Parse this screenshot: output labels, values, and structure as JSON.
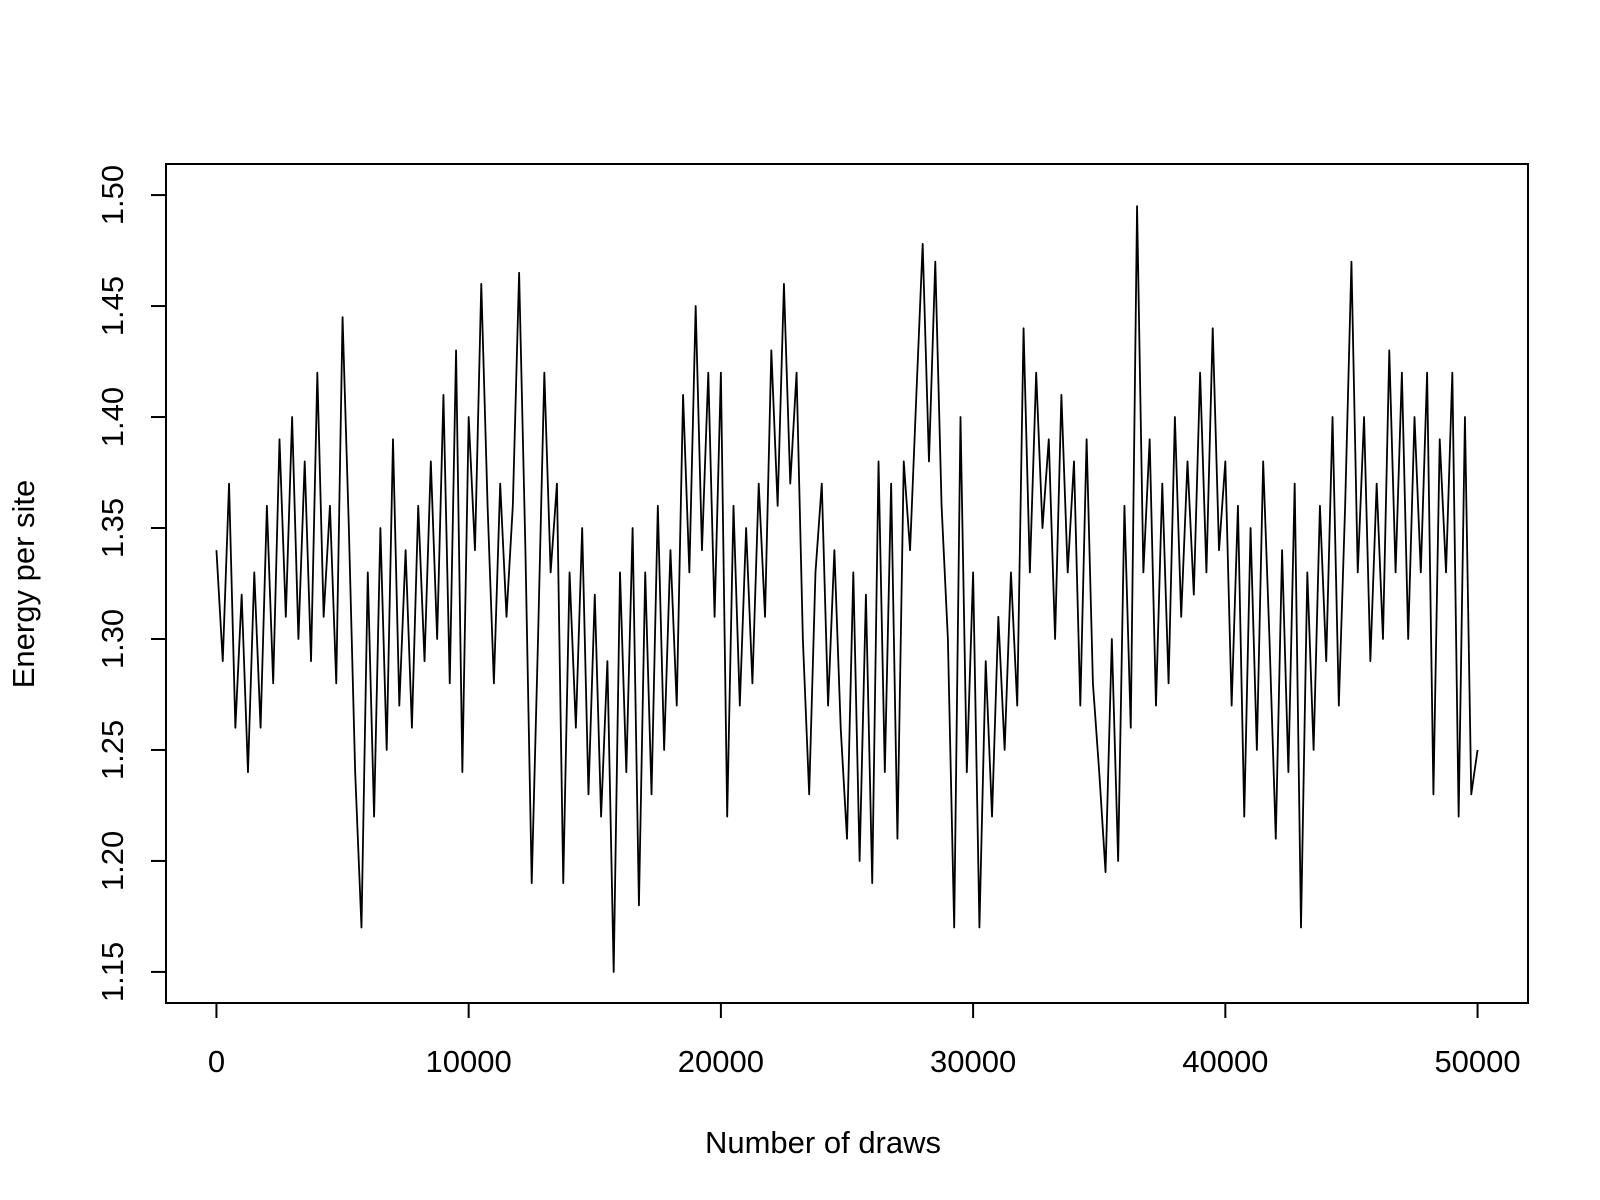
{
  "chart_data": {
    "type": "line",
    "x_label": "Number of draws",
    "y_label": "Energy per site",
    "color": "#000000",
    "xlim": [
      -2000,
      52000
    ],
    "ylim": [
      1.136,
      1.514
    ],
    "xticks": [
      0,
      10000,
      20000,
      30000,
      40000,
      50000
    ],
    "yticks": [
      1.15,
      {
        "value": 1.2,
        "label": "1.20"
      },
      1.25,
      {
        "value": 1.3,
        "label": "1.30"
      },
      1.35,
      {
        "value": 1.4,
        "label": "1.40"
      },
      1.45,
      {
        "value": 1.5,
        "label": "1.50"
      }
    ],
    "x": [
      0,
      250,
      500,
      750,
      1000,
      1250,
      1500,
      1750,
      2000,
      2250,
      2500,
      2750,
      3000,
      3250,
      3500,
      3750,
      4000,
      4250,
      4500,
      4750,
      5000,
      5250,
      5500,
      5750,
      6000,
      6250,
      6500,
      6750,
      7000,
      7250,
      7500,
      7750,
      8000,
      8250,
      8500,
      8750,
      9000,
      9250,
      9500,
      9750,
      10000,
      10250,
      10500,
      10750,
      11000,
      11250,
      11500,
      11750,
      12000,
      12250,
      12500,
      12750,
      13000,
      13250,
      13500,
      13750,
      14000,
      14250,
      14500,
      14750,
      15000,
      15250,
      15500,
      15750,
      16000,
      16250,
      16500,
      16750,
      17000,
      17250,
      17500,
      17750,
      18000,
      18250,
      18500,
      18750,
      19000,
      19250,
      19500,
      19750,
      20000,
      20250,
      20500,
      20750,
      21000,
      21250,
      21500,
      21750,
      22000,
      22250,
      22500,
      22750,
      23000,
      23250,
      23500,
      23750,
      24000,
      24250,
      24500,
      24750,
      25000,
      25250,
      25500,
      25750,
      26000,
      26250,
      26500,
      26750,
      27000,
      27250,
      27500,
      27750,
      28000,
      28250,
      28500,
      28750,
      29000,
      29250,
      29500,
      29750,
      30000,
      30250,
      30500,
      30750,
      31000,
      31250,
      31500,
      31750,
      32000,
      32250,
      32500,
      32750,
      33000,
      33250,
      33500,
      33750,
      34000,
      34250,
      34500,
      34750,
      35000,
      35250,
      35500,
      35750,
      36000,
      36250,
      36500,
      36750,
      37000,
      37250,
      37500,
      37750,
      38000,
      38250,
      38500,
      38750,
      39000,
      39250,
      39500,
      39750,
      40000,
      40250,
      40500,
      40750,
      41000,
      41250,
      41500,
      41750,
      42000,
      42250,
      42500,
      42750,
      43000,
      43250,
      43500,
      43750,
      44000,
      44250,
      44500,
      44750,
      45000,
      45250,
      45500,
      45750,
      46000,
      46250,
      46500,
      46750,
      47000,
      47250,
      47500,
      47750,
      48000,
      48250,
      48500,
      48750,
      49000,
      49250,
      49500,
      49750,
      50000
    ],
    "values": [
      1.34,
      1.29,
      1.37,
      1.26,
      1.32,
      1.24,
      1.33,
      1.26,
      1.36,
      1.28,
      1.39,
      1.31,
      1.4,
      1.3,
      1.38,
      1.29,
      1.42,
      1.31,
      1.36,
      1.28,
      1.445,
      1.35,
      1.24,
      1.17,
      1.33,
      1.22,
      1.35,
      1.25,
      1.39,
      1.27,
      1.34,
      1.26,
      1.36,
      1.29,
      1.38,
      1.3,
      1.41,
      1.28,
      1.43,
      1.24,
      1.4,
      1.34,
      1.46,
      1.36,
      1.28,
      1.37,
      1.31,
      1.36,
      1.465,
      1.34,
      1.19,
      1.3,
      1.42,
      1.33,
      1.37,
      1.19,
      1.33,
      1.26,
      1.35,
      1.23,
      1.32,
      1.22,
      1.29,
      1.15,
      1.33,
      1.24,
      1.35,
      1.18,
      1.33,
      1.23,
      1.36,
      1.25,
      1.34,
      1.27,
      1.41,
      1.33,
      1.45,
      1.34,
      1.42,
      1.31,
      1.42,
      1.22,
      1.36,
      1.27,
      1.35,
      1.28,
      1.37,
      1.31,
      1.43,
      1.36,
      1.46,
      1.37,
      1.42,
      1.3,
      1.23,
      1.33,
      1.37,
      1.27,
      1.34,
      1.26,
      1.21,
      1.33,
      1.2,
      1.32,
      1.19,
      1.38,
      1.24,
      1.37,
      1.21,
      1.38,
      1.34,
      1.41,
      1.478,
      1.38,
      1.47,
      1.36,
      1.3,
      1.17,
      1.4,
      1.24,
      1.33,
      1.17,
      1.29,
      1.22,
      1.31,
      1.25,
      1.33,
      1.27,
      1.44,
      1.33,
      1.42,
      1.35,
      1.39,
      1.3,
      1.41,
      1.33,
      1.38,
      1.27,
      1.39,
      1.28,
      1.24,
      1.195,
      1.3,
      1.2,
      1.36,
      1.26,
      1.495,
      1.33,
      1.39,
      1.27,
      1.37,
      1.28,
      1.4,
      1.31,
      1.38,
      1.32,
      1.42,
      1.33,
      1.44,
      1.34,
      1.38,
      1.27,
      1.36,
      1.22,
      1.35,
      1.25,
      1.38,
      1.3,
      1.21,
      1.34,
      1.24,
      1.37,
      1.17,
      1.33,
      1.25,
      1.36,
      1.29,
      1.4,
      1.27,
      1.36,
      1.47,
      1.33,
      1.4,
      1.29,
      1.37,
      1.3,
      1.43,
      1.33,
      1.42,
      1.3,
      1.4,
      1.33,
      1.42,
      1.23,
      1.39,
      1.33,
      1.42,
      1.22,
      1.4,
      1.23,
      1.25
    ]
  }
}
